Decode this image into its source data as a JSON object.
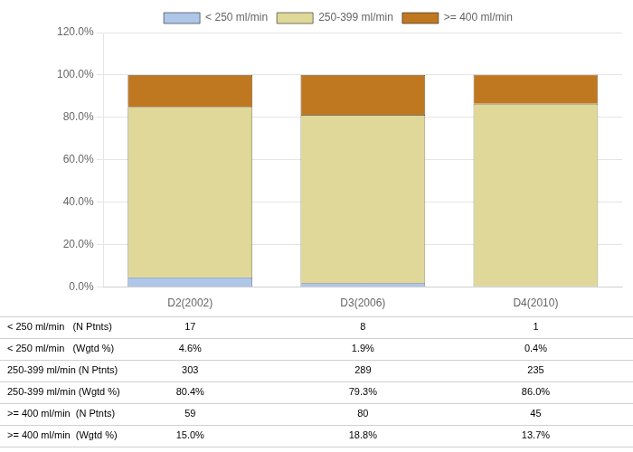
{
  "chart_data": {
    "type": "bar",
    "stacked": true,
    "categories": [
      "D2(2002)",
      "D3(2006)",
      "D4(2010)"
    ],
    "series": [
      {
        "name": "< 250 ml/min",
        "color": "#aec6e8",
        "values": [
          4.6,
          1.9,
          0.4
        ]
      },
      {
        "name": "250-399 ml/min",
        "color": "#dfd898",
        "values": [
          80.4,
          79.3,
          86.0
        ]
      },
      {
        "name": ">= 400 ml/min",
        "color": "#c07820",
        "values": [
          15.0,
          18.8,
          13.7
        ]
      }
    ],
    "ylim": [
      0,
      120
    ],
    "yticks": [
      {
        "value": 0,
        "label": "0.0%"
      },
      {
        "value": 20,
        "label": "20.0%"
      },
      {
        "value": 40,
        "label": "40.0%"
      },
      {
        "value": 60,
        "label": "60.0%"
      },
      {
        "value": 80,
        "label": "80.0%"
      },
      {
        "value": 100,
        "label": "100.0%"
      },
      {
        "value": 120,
        "label": "120.0%"
      }
    ],
    "grid": true,
    "legend": "top",
    "table": [
      [
        "< 250 ml/min   (N Ptnts)",
        "17",
        "8",
        "1"
      ],
      [
        "< 250 ml/min   (Wgtd %)",
        "4.6%",
        "1.9%",
        "0.4%"
      ],
      [
        "250-399 ml/min (N Ptnts)",
        "303",
        "289",
        "235"
      ],
      [
        "250-399 ml/min (Wgtd %)",
        "80.4%",
        "79.3%",
        "86.0%"
      ],
      [
        ">= 400 ml/min  (N Ptnts)",
        "59",
        "80",
        "45"
      ],
      [
        ">= 400 ml/min  (Wgtd %)",
        "15.0%",
        "18.8%",
        "13.7%"
      ]
    ]
  }
}
